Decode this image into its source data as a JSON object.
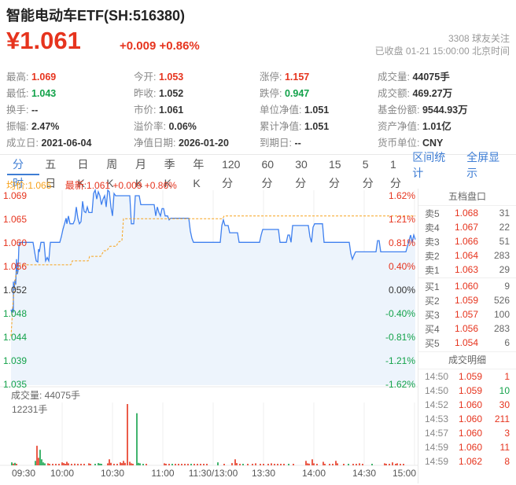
{
  "colors": {
    "red": "#e6341e",
    "green": "#13a24a",
    "black": "#333333",
    "orange": "#f7a21b",
    "blue_line": "#3f80ef",
    "fill": "#edf4fc",
    "link": "#3e7dd4"
  },
  "header": {
    "title": "智能电动车ETF(SH:516380)",
    "price": "¥1.061",
    "change": "+0.009 +0.86%",
    "followers": "3308 球友关注",
    "status": "已收盘 01-21 15:00:00 北京时间"
  },
  "stats": [
    {
      "label": "最高:",
      "value": "1.069",
      "c": "r"
    },
    {
      "label": "今开:",
      "value": "1.053",
      "c": "r"
    },
    {
      "label": "涨停:",
      "value": "1.157",
      "c": "r"
    },
    {
      "label": "成交量:",
      "value": "44075手",
      "c": "k"
    },
    {
      "label": "最低:",
      "value": "1.043",
      "c": "g"
    },
    {
      "label": "昨收:",
      "value": "1.052",
      "c": "k"
    },
    {
      "label": "跌停:",
      "value": "0.947",
      "c": "g"
    },
    {
      "label": "成交额:",
      "value": "469.27万",
      "c": "k"
    },
    {
      "label": "换手:",
      "value": "--",
      "c": "k"
    },
    {
      "label": "市价:",
      "value": "1.061",
      "c": "k"
    },
    {
      "label": "单位净值:",
      "value": "1.051",
      "c": "k"
    },
    {
      "label": "基金份额:",
      "value": "9544.93万",
      "c": "k"
    },
    {
      "label": "振幅:",
      "value": "2.47%",
      "c": "k"
    },
    {
      "label": "溢价率:",
      "value": "0.06%",
      "c": "k"
    },
    {
      "label": "累计净值:",
      "value": "1.051",
      "c": "k"
    },
    {
      "label": "资产净值:",
      "value": "1.01亿",
      "c": "k"
    },
    {
      "label": "成立日:",
      "value": "2021-06-04",
      "c": "k"
    },
    {
      "label": "净值日期:",
      "value": "2026-01-20",
      "c": "k"
    },
    {
      "label": "到期日:",
      "value": "--",
      "c": "k"
    },
    {
      "label": "货币单位:",
      "value": "CNY",
      "c": "k"
    }
  ],
  "tabs": {
    "items": [
      {
        "label": "分时",
        "active": true
      },
      {
        "label": "五日",
        "active": false
      },
      {
        "label": "日K",
        "active": false
      },
      {
        "label": "周K",
        "active": false
      },
      {
        "label": "月K",
        "active": false
      },
      {
        "label": "季K",
        "active": false
      },
      {
        "label": "年K",
        "active": false
      },
      {
        "label": "120分",
        "active": false
      },
      {
        "label": "60分",
        "active": false
      },
      {
        "label": "30分",
        "active": false
      },
      {
        "label": "15分",
        "active": false
      },
      {
        "label": "5分",
        "active": false
      },
      {
        "label": "1分",
        "active": false
      }
    ],
    "links": [
      "区间统计",
      "全屏显示"
    ]
  },
  "legend": {
    "avg": "均价:1.065",
    "latest": "最新:1.061 +0.009 +0.86%"
  },
  "chart_data": {
    "type": "line",
    "x_axis": [
      "09:30",
      "10:00",
      "10:30",
      "11:00",
      "11:30/13:00",
      "13:30",
      "14:00",
      "14:30",
      "15:00"
    ],
    "y_axis_left": [
      {
        "t": "1.069",
        "c": "r"
      },
      {
        "t": "1.065",
        "c": "r"
      },
      {
        "t": "1.060",
        "c": "r"
      },
      {
        "t": "1.056",
        "c": "r"
      },
      {
        "t": "1.052",
        "c": "k"
      },
      {
        "t": "1.048",
        "c": "g"
      },
      {
        "t": "1.044",
        "c": "g"
      },
      {
        "t": "1.039",
        "c": "g"
      },
      {
        "t": "1.035",
        "c": "g"
      }
    ],
    "y_axis_right": [
      {
        "t": "1.62%",
        "c": "r"
      },
      {
        "t": "1.21%",
        "c": "r"
      },
      {
        "t": "0.81%",
        "c": "r"
      },
      {
        "t": "0.40%",
        "c": "r"
      },
      {
        "t": "0.00%",
        "c": "k"
      },
      {
        "t": "-0.40%",
        "c": "g"
      },
      {
        "t": "-0.81%",
        "c": "g"
      },
      {
        "t": "-1.21%",
        "c": "g"
      },
      {
        "t": "-1.62%",
        "c": "g"
      }
    ],
    "price_line": [
      [
        14,
        1.0485
      ],
      [
        15,
        1.048
      ],
      [
        16,
        1.0487
      ],
      [
        17,
        1.048
      ],
      [
        17,
        1.0535
      ],
      [
        18,
        1.052
      ],
      [
        19,
        1.0538
      ],
      [
        20,
        1.053
      ],
      [
        21,
        1.0575
      ],
      [
        22,
        1.0548
      ],
      [
        23,
        1.0555
      ],
      [
        24,
        1.0598
      ],
      [
        25,
        1.0605
      ],
      [
        42,
        1.0605
      ],
      [
        44,
        1.0588
      ],
      [
        46,
        1.0572
      ],
      [
        48,
        1.057
      ],
      [
        49,
        1.0593
      ],
      [
        50,
        1.0588
      ],
      [
        52,
        1.0605
      ],
      [
        56,
        1.0605
      ],
      [
        58,
        1.0572
      ],
      [
        60,
        1.0578
      ],
      [
        62,
        1.0572
      ],
      [
        64,
        1.0605
      ],
      [
        76,
        1.0605
      ],
      [
        78,
        1.0615
      ],
      [
        80,
        1.0628
      ],
      [
        82,
        1.0638
      ],
      [
        84,
        1.0648
      ],
      [
        85,
        1.0638
      ],
      [
        87,
        1.0652
      ],
      [
        89,
        1.0638
      ],
      [
        93,
        1.0638
      ],
      [
        95,
        1.0645
      ],
      [
        97,
        1.0668
      ],
      [
        99,
        1.0648
      ],
      [
        101,
        1.0638
      ],
      [
        103,
        1.0642
      ],
      [
        105,
        1.0678
      ],
      [
        107,
        1.066
      ],
      [
        109,
        1.0658
      ],
      [
        111,
        1.0668
      ],
      [
        113,
        1.0658
      ],
      [
        117,
        1.0658
      ],
      [
        119,
        1.0692
      ],
      [
        121,
        1.0698
      ],
      [
        123,
        1.0682
      ],
      [
        125,
        1.0695
      ],
      [
        127,
        1.0688
      ],
      [
        129,
        1.0672
      ],
      [
        131,
        1.0682
      ],
      [
        133,
        1.0688
      ],
      [
        135,
        1.0668
      ],
      [
        137,
        1.0698
      ],
      [
        139,
        1.0695
      ],
      [
        141,
        1.0668
      ],
      [
        143,
        1.0652
      ],
      [
        145,
        1.0692
      ],
      [
        147,
        1.0688
      ],
      [
        165,
        1.0688
      ],
      [
        167,
        1.0638
      ],
      [
        170,
        1.0638
      ],
      [
        172,
        1.0688
      ],
      [
        177,
        1.0688
      ],
      [
        179,
        1.0672
      ],
      [
        196,
        1.0672
      ],
      [
        198,
        1.0652
      ],
      [
        200,
        1.0668
      ],
      [
        202,
        1.0658
      ],
      [
        204,
        1.0652
      ],
      [
        206,
        1.0665
      ],
      [
        208,
        1.0665
      ],
      [
        210,
        1.0652
      ],
      [
        213,
        1.0652
      ],
      [
        215,
        1.0645
      ],
      [
        217,
        1.0648
      ],
      [
        240,
        1.0648
      ],
      [
        242,
        1.0625
      ],
      [
        244,
        1.0612
      ],
      [
        246,
        1.0605
      ],
      [
        280,
        1.0605
      ],
      [
        282,
        1.0635
      ],
      [
        284,
        1.0645
      ],
      [
        286,
        1.0635
      ],
      [
        290,
        1.0635
      ],
      [
        292,
        1.0622
      ],
      [
        302,
        1.0622
      ],
      [
        304,
        1.0605
      ],
      [
        330,
        1.0605
      ],
      [
        332,
        1.0618
      ],
      [
        334,
        1.0628
      ],
      [
        336,
        1.0628
      ],
      [
        354,
        1.0628
      ],
      [
        356,
        1.0605
      ],
      [
        364,
        1.0605
      ],
      [
        366,
        1.0618
      ],
      [
        368,
        1.0618
      ],
      [
        370,
        1.0605
      ],
      [
        372,
        1.0635
      ],
      [
        392,
        1.0635
      ],
      [
        394,
        1.0615
      ],
      [
        396,
        1.0605
      ],
      [
        398,
        1.0632
      ],
      [
        400,
        1.0638
      ],
      [
        410,
        1.0638
      ],
      [
        412,
        1.0605
      ],
      [
        414,
        1.0605
      ],
      [
        444,
        1.0605
      ],
      [
        446,
        1.0585
      ],
      [
        448,
        1.0575
      ],
      [
        450,
        1.0582
      ],
      [
        452,
        1.0588
      ],
      [
        478,
        1.0588
      ],
      [
        480,
        1.0608
      ],
      [
        482,
        1.0608
      ],
      [
        484,
        1.0588
      ],
      [
        486,
        1.0588
      ],
      [
        516,
        1.0588
      ],
      [
        518,
        1.0598
      ],
      [
        520,
        1.0608
      ],
      [
        522,
        1.0618
      ],
      [
        524,
        1.0605
      ],
      [
        526,
        1.0618
      ],
      [
        528,
        1.061
      ]
    ],
    "avg_line": [
      [
        14,
        1.0438
      ],
      [
        15,
        1.046
      ],
      [
        16,
        1.0488
      ],
      [
        17,
        1.0505
      ],
      [
        18,
        1.0522
      ],
      [
        19,
        1.0535
      ],
      [
        20,
        1.0545
      ],
      [
        22,
        1.0555
      ],
      [
        24,
        1.0562
      ],
      [
        26,
        1.0565
      ],
      [
        90,
        1.0565
      ],
      [
        92,
        1.0572
      ],
      [
        112,
        1.0572
      ],
      [
        114,
        1.058
      ],
      [
        128,
        1.058
      ],
      [
        130,
        1.0585
      ],
      [
        132,
        1.059
      ],
      [
        136,
        1.059
      ],
      [
        138,
        1.0595
      ],
      [
        140,
        1.0598
      ],
      [
        148,
        1.0598
      ],
      [
        150,
        1.0605
      ],
      [
        155,
        1.0608
      ],
      [
        157,
        1.0647
      ],
      [
        283,
        1.0647
      ],
      [
        285,
        1.0652
      ],
      [
        528,
        1.0652
      ]
    ],
    "volume_title": "成交量: 44075手",
    "volume_max_label": "12231手",
    "volume_max": 12231,
    "volume_bars": [
      [
        15,
        600,
        "g"
      ],
      [
        17,
        350,
        "r"
      ],
      [
        19,
        500,
        "g"
      ],
      [
        21,
        250,
        "r"
      ],
      [
        45,
        900,
        "g"
      ],
      [
        47,
        3900,
        "r"
      ],
      [
        49,
        1500,
        "r"
      ],
      [
        51,
        3100,
        "g"
      ],
      [
        53,
        1200,
        "g"
      ],
      [
        55,
        600,
        "g"
      ],
      [
        57,
        400,
        "g"
      ],
      [
        61,
        400,
        "r"
      ],
      [
        63,
        300,
        "r"
      ],
      [
        67,
        250,
        "r"
      ],
      [
        71,
        300,
        "r"
      ],
      [
        75,
        250,
        "r"
      ],
      [
        79,
        600,
        "r"
      ],
      [
        81,
        450,
        "r"
      ],
      [
        83,
        300,
        "r"
      ],
      [
        85,
        700,
        "r"
      ],
      [
        87,
        400,
        "r"
      ],
      [
        91,
        300,
        "r"
      ],
      [
        95,
        350,
        "r"
      ],
      [
        99,
        300,
        "r"
      ],
      [
        103,
        300,
        "r"
      ],
      [
        107,
        250,
        "r"
      ],
      [
        113,
        400,
        "r"
      ],
      [
        115,
        250,
        "r"
      ],
      [
        121,
        300,
        "g"
      ],
      [
        125,
        450,
        "g"
      ],
      [
        127,
        350,
        "g"
      ],
      [
        129,
        300,
        "g"
      ],
      [
        137,
        400,
        "r"
      ],
      [
        139,
        1200,
        "r"
      ],
      [
        141,
        500,
        "r"
      ],
      [
        145,
        300,
        "r"
      ],
      [
        149,
        250,
        "r"
      ],
      [
        153,
        600,
        "r"
      ],
      [
        155,
        450,
        "r"
      ],
      [
        157,
        900,
        "r"
      ],
      [
        159,
        500,
        "r"
      ],
      [
        162,
        12231,
        "r"
      ],
      [
        165,
        700,
        "r"
      ],
      [
        167,
        400,
        "r"
      ],
      [
        169,
        300,
        "r"
      ],
      [
        174,
        10400,
        "g"
      ],
      [
        176,
        500,
        "g"
      ],
      [
        178,
        400,
        "g"
      ],
      [
        182,
        300,
        "g"
      ],
      [
        186,
        250,
        "r"
      ],
      [
        209,
        400,
        "r"
      ],
      [
        211,
        300,
        "r"
      ],
      [
        215,
        300,
        "r"
      ],
      [
        219,
        300,
        "g"
      ],
      [
        223,
        250,
        "r"
      ],
      [
        227,
        300,
        "r"
      ],
      [
        231,
        250,
        "r"
      ],
      [
        235,
        300,
        "r"
      ],
      [
        239,
        250,
        "r"
      ],
      [
        243,
        300,
        "g"
      ],
      [
        247,
        250,
        "r"
      ],
      [
        251,
        300,
        "r"
      ],
      [
        255,
        250,
        "r"
      ],
      [
        259,
        250,
        "r"
      ],
      [
        263,
        300,
        "r"
      ],
      [
        277,
        600,
        "g"
      ],
      [
        285,
        300,
        "r"
      ],
      [
        295,
        450,
        "r"
      ],
      [
        299,
        1200,
        "r"
      ],
      [
        301,
        450,
        "r"
      ],
      [
        305,
        300,
        "r"
      ],
      [
        309,
        300,
        "g"
      ],
      [
        315,
        300,
        "r"
      ],
      [
        321,
        250,
        "r"
      ],
      [
        325,
        400,
        "r"
      ],
      [
        331,
        300,
        "r"
      ],
      [
        335,
        300,
        "r"
      ],
      [
        341,
        300,
        "r"
      ],
      [
        345,
        400,
        "r"
      ],
      [
        349,
        300,
        "r"
      ],
      [
        353,
        250,
        "r"
      ],
      [
        357,
        300,
        "r"
      ],
      [
        361,
        250,
        "r"
      ],
      [
        367,
        300,
        "g"
      ],
      [
        373,
        250,
        "r"
      ],
      [
        389,
        900,
        "r"
      ],
      [
        391,
        400,
        "r"
      ],
      [
        393,
        350,
        "r"
      ],
      [
        397,
        1200,
        "r"
      ],
      [
        399,
        400,
        "r"
      ],
      [
        403,
        300,
        "r"
      ],
      [
        411,
        700,
        "r"
      ],
      [
        413,
        300,
        "r"
      ],
      [
        419,
        250,
        "r"
      ],
      [
        423,
        300,
        "r"
      ],
      [
        427,
        900,
        "r"
      ],
      [
        429,
        400,
        "r"
      ],
      [
        437,
        300,
        "r"
      ],
      [
        443,
        300,
        "g"
      ],
      [
        449,
        250,
        "r"
      ],
      [
        453,
        300,
        "r"
      ],
      [
        457,
        400,
        "r"
      ],
      [
        461,
        300,
        "r"
      ],
      [
        473,
        250,
        "g"
      ],
      [
        489,
        400,
        "r"
      ],
      [
        491,
        300,
        "r"
      ],
      [
        495,
        300,
        "r"
      ],
      [
        499,
        600,
        "r"
      ],
      [
        503,
        300,
        "r"
      ],
      [
        505,
        400,
        "r"
      ],
      [
        509,
        300,
        "r"
      ],
      [
        513,
        250,
        "r"
      ]
    ]
  },
  "order_book": {
    "title": "五档盘口",
    "asks": [
      [
        "卖5",
        "1.068",
        "31"
      ],
      [
        "卖4",
        "1.067",
        "22"
      ],
      [
        "卖3",
        "1.066",
        "51"
      ],
      [
        "卖2",
        "1.064",
        "283"
      ],
      [
        "卖1",
        "1.063",
        "29"
      ]
    ],
    "bids": [
      [
        "买1",
        "1.060",
        "9"
      ],
      [
        "买2",
        "1.059",
        "526"
      ],
      [
        "买3",
        "1.057",
        "100"
      ],
      [
        "买4",
        "1.056",
        "283"
      ],
      [
        "买5",
        "1.054",
        "6"
      ]
    ]
  },
  "trades": {
    "title": "成交明细",
    "rows": [
      [
        "14:50",
        "1.059",
        "1",
        "r"
      ],
      [
        "14:50",
        "1.059",
        "10",
        "g"
      ],
      [
        "14:52",
        "1.060",
        "30",
        "r"
      ],
      [
        "14:53",
        "1.060",
        "211",
        "r"
      ],
      [
        "14:57",
        "1.060",
        "3",
        "r"
      ],
      [
        "14:59",
        "1.060",
        "11",
        "r"
      ],
      [
        "14:59",
        "1.062",
        "8",
        "r"
      ]
    ]
  }
}
